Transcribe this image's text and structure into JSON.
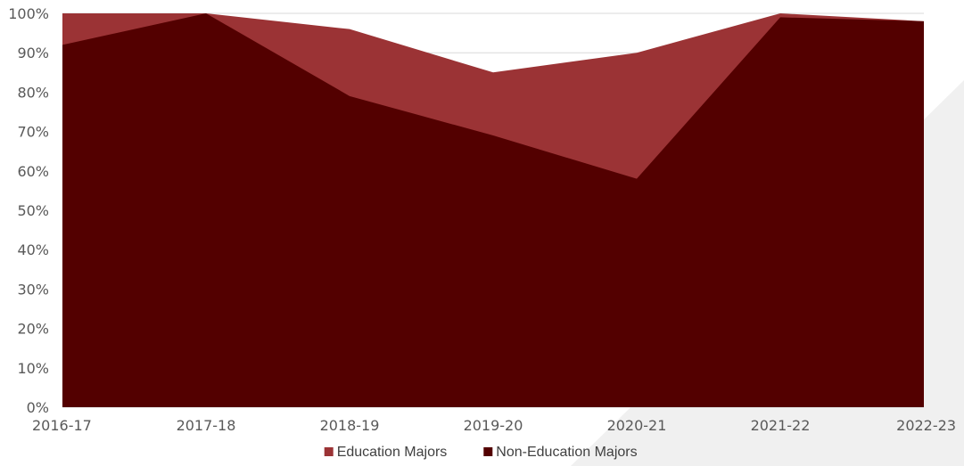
{
  "chart_data": {
    "type": "area",
    "stacked": false,
    "categories": [
      "2016-17",
      "2017-18",
      "2018-19",
      "2019-20",
      "2020-21",
      "2021-22",
      "2022-23"
    ],
    "series": [
      {
        "name": "Education Majors",
        "color": "#9b3335",
        "values": [
          100,
          100,
          96,
          85,
          90,
          100,
          98
        ]
      },
      {
        "name": "Non-Education Majors",
        "color": "#530000",
        "values": [
          92,
          100,
          79,
          69,
          58,
          99,
          98
        ]
      }
    ],
    "y_ticks": [
      "0%",
      "10%",
      "20%",
      "30%",
      "40%",
      "50%",
      "60%",
      "70%",
      "80%",
      "90%",
      "100%"
    ],
    "ylim": [
      0,
      100
    ],
    "grid": true,
    "legend_position": "bottom",
    "colors": {
      "grid": "#d9d9d9",
      "background": "#ffffff",
      "watermark": "#f0f0f0"
    }
  }
}
